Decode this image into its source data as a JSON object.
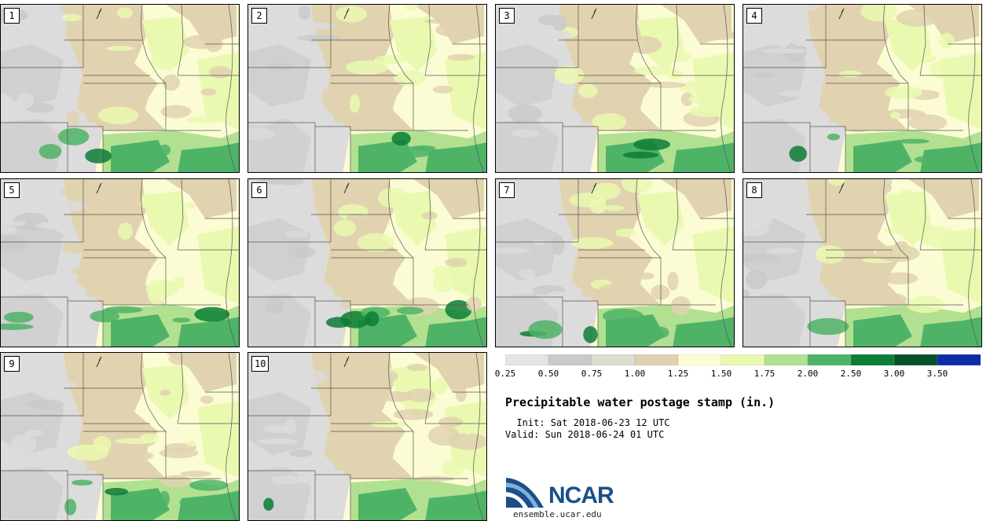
{
  "page": {
    "title": "Precipitable water postage stamp (in.)",
    "init_label": "  Init: Sat 2018-06-23 12 UTC",
    "valid_label": "Valid: Sun 2018-06-24 01 UTC"
  },
  "members": [
    "1",
    "2",
    "3",
    "4",
    "5",
    "6",
    "7",
    "8",
    "9",
    "10"
  ],
  "colorbar": {
    "unit": "in.",
    "ticks": [
      "0.25",
      "0.50",
      "0.75",
      "1.00",
      "1.25",
      "1.50",
      "1.75",
      "2.00",
      "2.50",
      "3.00",
      "3.50"
    ],
    "colors": [
      "#e4e4e4",
      "#cacaca",
      "#dcdcd0",
      "#e1d1b0",
      "#fbfcd4",
      "#eaf9b0",
      "#b1e190",
      "#4fb367",
      "#0c7d36",
      "#045228",
      "#0f2ba9"
    ]
  },
  "map_colors": {
    "gray_dark": "#cacaca",
    "gray_light": "#dcdcdc",
    "tan": "#e1d2b0",
    "cream": "#fbfcd4",
    "light_green": "#eaf9b0",
    "mid_green": "#b1e190",
    "green": "#4fb367",
    "dark_green": "#0c7d36"
  },
  "logo": {
    "name": "NCAR",
    "url": "ensemble.ucar.edu"
  }
}
